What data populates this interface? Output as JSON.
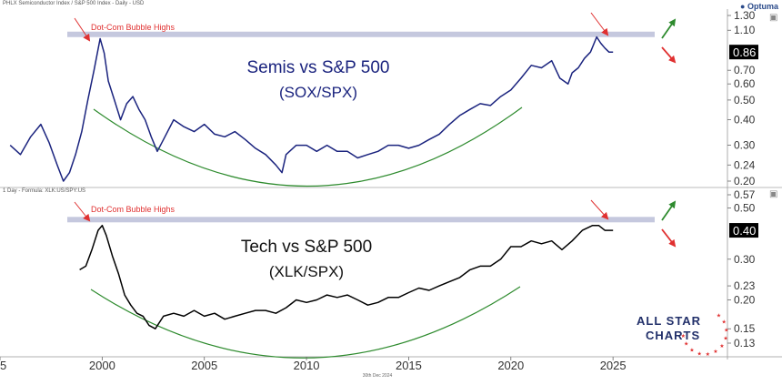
{
  "header": {
    "top_left": "PHLX Semiconductor Index / S&P 500 Index - Daily - USD",
    "mid_left": "1 Day - Formula: XLK:US/SPY:US",
    "brand": "Optuma",
    "footer_date": "30th Dec 2024"
  },
  "logo": {
    "line1": "ALL STAR",
    "line2": "CHARTS"
  },
  "colors": {
    "sox_line": "#1a237e",
    "xlk_line": "#000000",
    "resistance_band": "#c5c8de",
    "arc": "#2e8b2e",
    "arrow_red": "#e03030",
    "arrow_green": "#2e8b2e",
    "last_value_bg": "#000000",
    "sox_title": "#1a237e",
    "xlk_title": "#111111"
  },
  "chart_data": [
    {
      "type": "line",
      "title": "Semis vs S&P 500",
      "subtitle": "(SOX/SPX)",
      "y_scale": "log",
      "ylim": [
        0.19,
        1.38
      ],
      "yticks": [
        "1.30",
        "1.10",
        "0.86",
        "0.70",
        "0.60",
        "0.50",
        "0.40",
        "0.30",
        "0.24",
        "0.20"
      ],
      "ytick_values": [
        1.3,
        1.1,
        0.86,
        0.7,
        0.6,
        0.5,
        0.4,
        0.3,
        0.24,
        0.2
      ],
      "last_value": "0.86",
      "annotation": "Dot-Com Bubble Highs",
      "resistance_level": 1.05,
      "series": [
        {
          "x": [
            1995.5,
            1996.0,
            1996.5,
            1997.0,
            1997.4,
            1997.8,
            1998.1,
            1998.4,
            1998.7,
            1999.0,
            1999.3,
            1999.6,
            1999.9,
            2000.1,
            2000.3,
            2000.6,
            2000.9,
            2001.2,
            2001.5,
            2001.8,
            2002.1,
            2002.4,
            2002.7,
            2003.0,
            2003.5,
            2004.0,
            2004.5,
            2005.0,
            2005.5,
            2006.0,
            2006.5,
            2007.0,
            2007.5,
            2008.0,
            2008.5,
            2008.8,
            2009.0,
            2009.5,
            2010.0,
            2010.5,
            2011.0,
            2011.5,
            2012.0,
            2012.5,
            2013.0,
            2013.5,
            2014.0,
            2014.5,
            2015.0,
            2015.5,
            2016.0,
            2016.5,
            2017.0,
            2017.5,
            2018.0,
            2018.5,
            2019.0,
            2019.5,
            2020.0,
            2020.5,
            2021.0,
            2021.5,
            2022.0,
            2022.4,
            2022.8,
            2023.0,
            2023.3,
            2023.6,
            2023.9,
            2024.2,
            2024.4,
            2024.6,
            2024.8,
            2025.0
          ],
          "values": [
            0.3,
            0.27,
            0.33,
            0.38,
            0.31,
            0.24,
            0.2,
            0.22,
            0.27,
            0.35,
            0.5,
            0.7,
            1.0,
            0.85,
            0.62,
            0.5,
            0.4,
            0.48,
            0.52,
            0.45,
            0.4,
            0.33,
            0.28,
            0.32,
            0.4,
            0.37,
            0.35,
            0.38,
            0.34,
            0.33,
            0.35,
            0.32,
            0.29,
            0.27,
            0.24,
            0.22,
            0.27,
            0.3,
            0.3,
            0.28,
            0.3,
            0.28,
            0.28,
            0.26,
            0.27,
            0.28,
            0.3,
            0.3,
            0.29,
            0.3,
            0.32,
            0.34,
            0.38,
            0.42,
            0.45,
            0.48,
            0.47,
            0.52,
            0.56,
            0.64,
            0.74,
            0.72,
            0.78,
            0.64,
            0.6,
            0.68,
            0.72,
            0.8,
            0.86,
            1.02,
            0.95,
            0.9,
            0.86,
            0.86
          ]
        }
      ]
    },
    {
      "type": "line",
      "title": "Tech vs S&P 500",
      "subtitle": "(XLK/SPX)",
      "y_scale": "log",
      "ylim": [
        0.125,
        0.6
      ],
      "yticks": [
        "0.57",
        "0.50",
        "0.40",
        "0.30",
        "0.23",
        "0.20",
        "0.15",
        "0.13"
      ],
      "ytick_values": [
        0.57,
        0.5,
        0.4,
        0.3,
        0.23,
        0.2,
        0.15,
        0.13
      ],
      "last_value": "0.40",
      "annotation": "Dot-Com Bubble Highs",
      "resistance_level": 0.445,
      "series": [
        {
          "x": [
            1998.9,
            1999.2,
            1999.5,
            1999.8,
            2000.0,
            2000.2,
            2000.5,
            2000.8,
            2001.1,
            2001.4,
            2001.7,
            2002.0,
            2002.3,
            2002.6,
            2003.0,
            2003.5,
            2004.0,
            2004.5,
            2005.0,
            2005.5,
            2006.0,
            2006.5,
            2007.0,
            2007.5,
            2008.0,
            2008.5,
            2009.0,
            2009.5,
            2010.0,
            2010.5,
            2011.0,
            2011.5,
            2012.0,
            2012.5,
            2013.0,
            2013.5,
            2014.0,
            2014.5,
            2015.0,
            2015.5,
            2016.0,
            2016.5,
            2017.0,
            2017.5,
            2018.0,
            2018.5,
            2019.0,
            2019.5,
            2020.0,
            2020.5,
            2021.0,
            2021.5,
            2022.0,
            2022.5,
            2023.0,
            2023.5,
            2024.0,
            2024.3,
            2024.6,
            2025.0
          ],
          "values": [
            0.27,
            0.28,
            0.33,
            0.4,
            0.42,
            0.38,
            0.31,
            0.26,
            0.21,
            0.19,
            0.175,
            0.17,
            0.155,
            0.15,
            0.17,
            0.175,
            0.17,
            0.18,
            0.17,
            0.175,
            0.165,
            0.17,
            0.175,
            0.18,
            0.18,
            0.175,
            0.185,
            0.2,
            0.195,
            0.2,
            0.21,
            0.205,
            0.21,
            0.2,
            0.19,
            0.195,
            0.205,
            0.205,
            0.215,
            0.225,
            0.22,
            0.23,
            0.24,
            0.25,
            0.27,
            0.28,
            0.28,
            0.3,
            0.34,
            0.34,
            0.36,
            0.35,
            0.36,
            0.33,
            0.36,
            0.4,
            0.42,
            0.42,
            0.4,
            0.4
          ]
        }
      ]
    }
  ],
  "x_axis": {
    "ticks": [
      "5",
      "2000",
      "2005",
      "2010",
      "2015",
      "2020",
      "2025"
    ],
    "tick_values": [
      1995,
      2000,
      2005,
      2010,
      2015,
      2020,
      2025
    ],
    "xlim": [
      1995.0,
      2030.6
    ]
  }
}
